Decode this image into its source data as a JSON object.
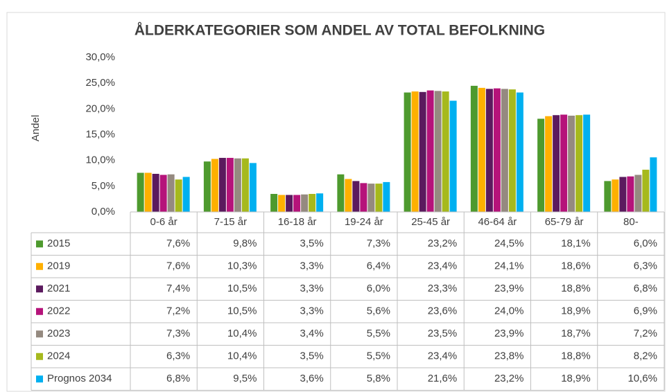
{
  "chart_data": {
    "type": "bar",
    "title": "ÅLDERKATEGORIER SOM ANDEL AV TOTAL BEFOLKNING",
    "ylabel": "Andel",
    "categories": [
      "0-6 år",
      "7-15 år",
      "16-18 år",
      "19-24 år",
      "25-45 år",
      "46-64 år",
      "65-79 år",
      "80-"
    ],
    "ylim": [
      0,
      30
    ],
    "yticks": [
      {
        "value": 0,
        "label": "0,0%"
      },
      {
        "value": 5,
        "label": "5,0%"
      },
      {
        "value": 10,
        "label": "10,0%"
      },
      {
        "value": 15,
        "label": "15,0%"
      },
      {
        "value": 20,
        "label": "20,0%"
      },
      {
        "value": 25,
        "label": "25,0%"
      },
      {
        "value": 30,
        "label": "30,0%"
      }
    ],
    "grid": false,
    "series": [
      {
        "name": "2015",
        "color": "#4e9a2e",
        "values": [
          7.6,
          9.8,
          3.5,
          7.3,
          23.2,
          24.5,
          18.1,
          6.0
        ],
        "value_labels": [
          "7,6%",
          "9,8%",
          "3,5%",
          "7,3%",
          "23,2%",
          "24,5%",
          "18,1%",
          "6,0%"
        ]
      },
      {
        "name": "2019",
        "color": "#ffb000",
        "values": [
          7.6,
          10.3,
          3.3,
          6.4,
          23.4,
          24.1,
          18.6,
          6.3
        ],
        "value_labels": [
          "7,6%",
          "10,3%",
          "3,3%",
          "6,4%",
          "23,4%",
          "24,1%",
          "18,6%",
          "6,3%"
        ]
      },
      {
        "name": "2021",
        "color": "#5b1a5e",
        "values": [
          7.4,
          10.5,
          3.3,
          6.0,
          23.3,
          23.9,
          18.8,
          6.8
        ],
        "value_labels": [
          "7,4%",
          "10,5%",
          "3,3%",
          "6,0%",
          "23,3%",
          "23,9%",
          "18,8%",
          "6,8%"
        ]
      },
      {
        "name": "2022",
        "color": "#b5137a",
        "values": [
          7.2,
          10.5,
          3.3,
          5.6,
          23.6,
          24.0,
          18.9,
          6.9
        ],
        "value_labels": [
          "7,2%",
          "10,5%",
          "3,3%",
          "5,6%",
          "23,6%",
          "24,0%",
          "18,9%",
          "6,9%"
        ]
      },
      {
        "name": "2023",
        "color": "#958a80",
        "values": [
          7.3,
          10.4,
          3.4,
          5.5,
          23.5,
          23.9,
          18.7,
          7.2
        ],
        "value_labels": [
          "7,3%",
          "10,4%",
          "3,4%",
          "5,5%",
          "23,5%",
          "23,9%",
          "18,7%",
          "7,2%"
        ]
      },
      {
        "name": "2024",
        "color": "#a6b91d",
        "values": [
          6.3,
          10.4,
          3.5,
          5.5,
          23.4,
          23.8,
          18.8,
          8.2
        ],
        "value_labels": [
          "6,3%",
          "10,4%",
          "3,5%",
          "5,5%",
          "23,4%",
          "23,8%",
          "18,8%",
          "8,2%"
        ]
      },
      {
        "name": "Prognos 2034",
        "color": "#00b0f0",
        "values": [
          6.8,
          9.5,
          3.6,
          5.8,
          21.6,
          23.2,
          18.9,
          10.6
        ],
        "value_labels": [
          "6,8%",
          "9,5%",
          "3,6%",
          "5,8%",
          "21,6%",
          "23,2%",
          "18,9%",
          "10,6%"
        ]
      }
    ]
  }
}
